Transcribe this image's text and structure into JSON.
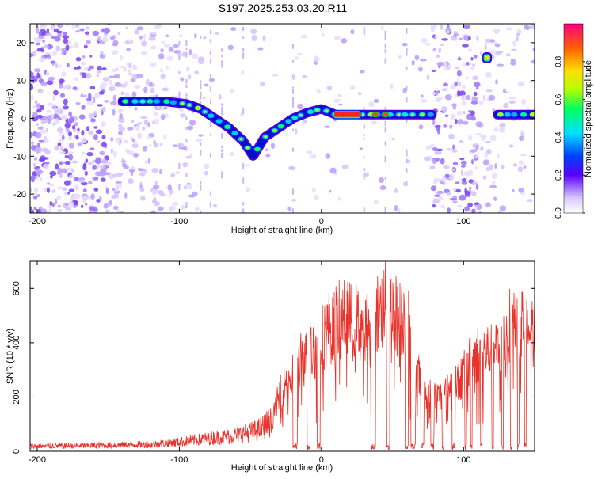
{
  "title": "S197.2025.253.03.20.R11",
  "chart_data": [
    {
      "type": "heatmap",
      "xlabel": "Height of straight line (km)",
      "ylabel": "Frequency (Hz)",
      "xlim": [
        -205,
        150
      ],
      "ylim": [
        -25,
        25
      ],
      "xticks": [
        -200,
        -100,
        0,
        100
      ],
      "yticks": [
        -20,
        -10,
        0,
        10,
        20
      ],
      "colorbar": {
        "label": "Normalized spectral amplitude",
        "range": [
          0,
          1
        ],
        "ticks": [
          "0.0",
          "0.2",
          "0.4",
          "0.6",
          "0.8"
        ]
      },
      "ridge": {
        "x": [
          -140,
          -125,
          -110,
          -95,
          -85,
          -75,
          -65,
          -55,
          -48,
          -40,
          -30,
          -20,
          -10,
          0,
          10,
          20,
          30,
          40,
          50,
          60,
          70,
          78
        ],
        "y": [
          4.5,
          4.5,
          4.5,
          3.8,
          2.5,
          0,
          -2.5,
          -6,
          -10,
          -5,
          -2.5,
          0,
          1.5,
          2.5,
          1,
          1,
          1,
          1,
          1,
          1,
          1,
          1
        ]
      },
      "ridge_right": {
        "x": [
          124,
          130,
          140,
          150
        ],
        "y": [
          1,
          1,
          1,
          1
        ]
      },
      "hot_spot": {
        "x": [
          113,
          120
        ],
        "y": 16
      },
      "saturated_segment": {
        "x": [
          8,
          28
        ],
        "y": 1
      }
    },
    {
      "type": "line",
      "xlabel": "Height of straight line (km)",
      "ylabel": "SNR (10 * v/v)",
      "xlim": [
        -205,
        150
      ],
      "ylim": [
        0,
        700
      ],
      "xticks": [
        -200,
        -100,
        0,
        100
      ],
      "yticks": [
        0,
        200,
        400,
        600
      ],
      "color": "#e8322a",
      "envelope": {
        "x": [
          -205,
          -160,
          -120,
          -100,
          -80,
          -60,
          -45,
          -35,
          -30,
          -25,
          -20,
          -15,
          -10,
          -5,
          0,
          5,
          10,
          15,
          20,
          25,
          30,
          35,
          40,
          45,
          50,
          55,
          60,
          65,
          70,
          78,
          85,
          90,
          95,
          100,
          105,
          110,
          115,
          120,
          125,
          130,
          135,
          140,
          145,
          150
        ],
        "y": [
          22,
          25,
          30,
          40,
          55,
          70,
          90,
          130,
          250,
          320,
          360,
          420,
          430,
          470,
          520,
          570,
          590,
          610,
          600,
          590,
          570,
          600,
          640,
          670,
          650,
          610,
          640,
          440,
          300,
          250,
          250,
          280,
          320,
          350,
          420,
          450,
          460,
          450,
          470,
          520,
          620,
          600,
          560,
          560
        ]
      }
    }
  ]
}
